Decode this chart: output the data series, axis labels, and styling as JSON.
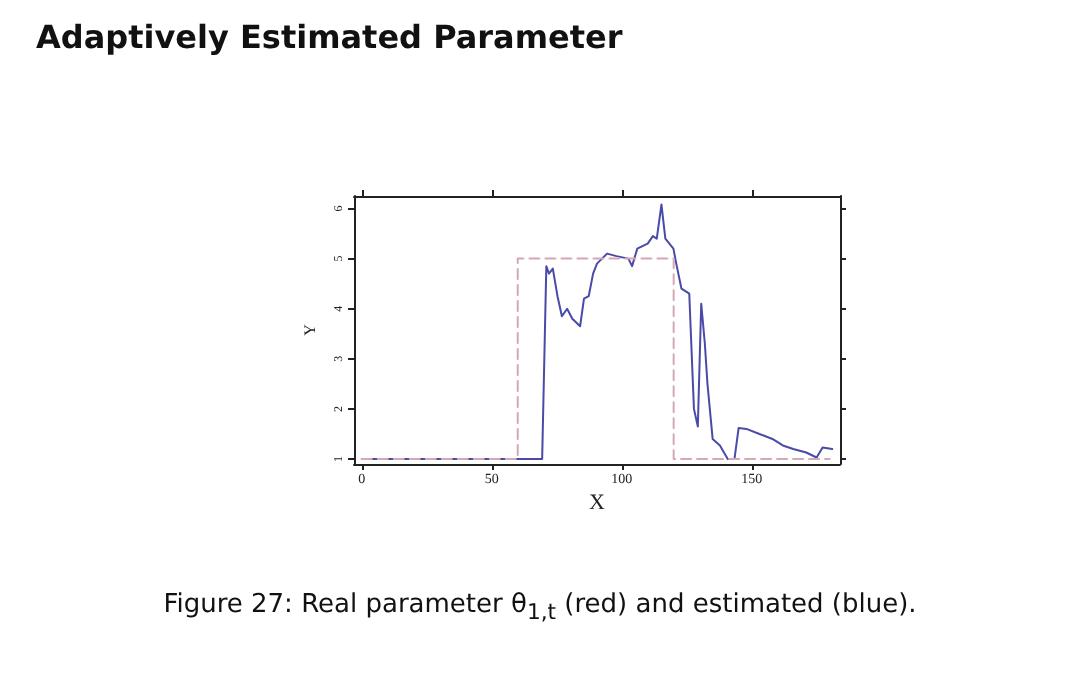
{
  "chart_data": {
    "type": "line",
    "title": "Adaptively Estimated Parameter",
    "xlabel": "X",
    "ylabel": "Y",
    "annotations": [
      "Figure 27: Real parameter θ$_{1,t}$ (red) and estimated (blue)."
    ],
    "xlim": [
      -3,
      184
    ],
    "ylim": [
      0.9,
      6.25
    ],
    "xticks": [
      0,
      50,
      100,
      150
    ],
    "yticks": [
      1,
      2,
      3,
      4,
      5,
      6
    ],
    "marker": "none",
    "series": [
      {
        "color": "#d4a8b4",
        "line_style": "dashed",
        "x": [
          0,
          60,
          60,
          120,
          120,
          180
        ],
        "values": [
          1,
          1,
          5,
          5,
          1,
          1
        ]
      },
      {
        "color": "#4a4aa8",
        "line_style": "solid",
        "x": [
          0,
          69.4,
          71,
          72,
          73.5,
          75.3,
          77,
          79,
          81,
          84,
          85.5,
          87.3,
          89,
          90.5,
          94.4,
          98,
          102.6,
          104,
          106,
          110,
          112,
          113.5,
          115.3,
          116.8,
          119.9,
          121,
          123,
          126,
          127.8,
          129.3,
          130.6,
          132,
          133,
          135,
          137.8,
          140.8,
          143.4,
          145,
          148,
          153,
          158,
          162,
          166,
          171,
          175,
          177.3,
          181
        ],
        "values": [
          1,
          1,
          4.85,
          4.7,
          4.8,
          4.25,
          3.85,
          4.0,
          3.8,
          3.65,
          4.2,
          4.25,
          4.7,
          4.9,
          5.1,
          5.05,
          5.0,
          4.85,
          5.2,
          5.3,
          5.45,
          5.4,
          6.08,
          5.4,
          5.2,
          4.9,
          4.4,
          4.3,
          2.0,
          1.65,
          4.1,
          3.3,
          2.5,
          1.4,
          1.27,
          1.0,
          1.0,
          1.62,
          1.6,
          1.5,
          1.4,
          1.27,
          1.2,
          1.13,
          1.03,
          1.23,
          1.2
        ]
      }
    ]
  }
}
